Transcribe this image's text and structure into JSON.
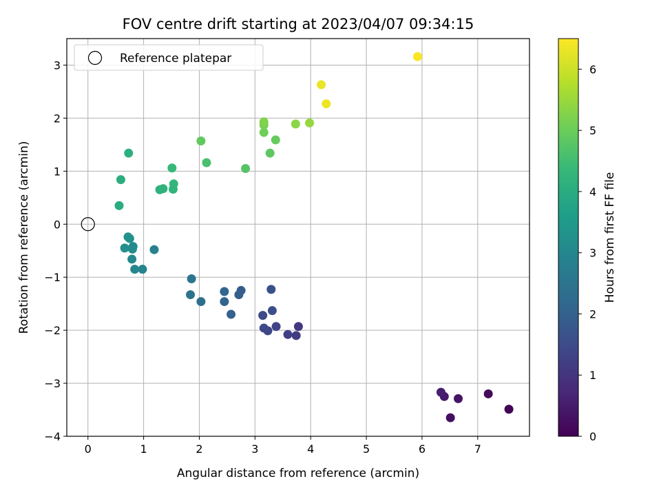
{
  "chart_data": {
    "type": "scatter",
    "title": "FOV centre drift starting at 2023/04/07 09:34:15",
    "xlabel": "Angular distance from reference (arcmin)",
    "ylabel": "Rotation from reference (arcmin)",
    "xlim": [
      -0.38,
      7.93
    ],
    "ylim": [
      -4.0,
      3.5
    ],
    "xticks": [
      0,
      1,
      2,
      3,
      4,
      5,
      6,
      7
    ],
    "yticks": [
      -4,
      -3,
      -2,
      -1,
      0,
      1,
      2,
      3
    ],
    "grid": true,
    "legend": {
      "placement": "top-left",
      "entries": [
        "Reference platepar"
      ]
    },
    "reference": {
      "x": 0,
      "y": 0,
      "label": "Reference platepar"
    },
    "colorbar": {
      "label": "Hours from first FF file",
      "min": 0,
      "max": 6.5,
      "ticks": [
        0,
        1,
        2,
        3,
        4,
        5,
        6
      ],
      "colormap": "viridis",
      "colormap_stops": [
        "#440154",
        "#482878",
        "#3e4989",
        "#31688e",
        "#26828e",
        "#1f9e89",
        "#35b779",
        "#6ece58",
        "#b5de2b",
        "#fde725"
      ]
    },
    "points": [
      {
        "x": 7.56,
        "y": -3.49,
        "c": 0.05
      },
      {
        "x": 7.19,
        "y": -3.2,
        "c": 0.15
      },
      {
        "x": 6.51,
        "y": -3.65,
        "c": 0.25
      },
      {
        "x": 6.65,
        "y": -3.29,
        "c": 0.35
      },
      {
        "x": 6.4,
        "y": -3.25,
        "c": 0.45
      },
      {
        "x": 6.34,
        "y": -3.17,
        "c": 0.55
      },
      {
        "x": 3.78,
        "y": -1.93,
        "c": 1.1
      },
      {
        "x": 3.74,
        "y": -2.1,
        "c": 1.18
      },
      {
        "x": 3.59,
        "y": -2.08,
        "c": 1.25
      },
      {
        "x": 3.38,
        "y": -1.93,
        "c": 1.32
      },
      {
        "x": 3.23,
        "y": -2.01,
        "c": 1.38
      },
      {
        "x": 3.16,
        "y": -1.96,
        "c": 1.44
      },
      {
        "x": 3.14,
        "y": -1.72,
        "c": 1.5
      },
      {
        "x": 3.31,
        "y": -1.63,
        "c": 1.55
      },
      {
        "x": 3.29,
        "y": -1.23,
        "c": 1.6
      },
      {
        "x": 2.75,
        "y": -1.25,
        "c": 1.9
      },
      {
        "x": 2.71,
        "y": -1.33,
        "c": 1.95
      },
      {
        "x": 2.57,
        "y": -1.7,
        "c": 2.0
      },
      {
        "x": 2.45,
        "y": -1.46,
        "c": 2.1
      },
      {
        "x": 2.45,
        "y": -1.27,
        "c": 2.15
      },
      {
        "x": 2.03,
        "y": -1.46,
        "c": 2.4
      },
      {
        "x": 1.84,
        "y": -1.33,
        "c": 2.5
      },
      {
        "x": 1.86,
        "y": -1.03,
        "c": 2.55
      },
      {
        "x": 1.19,
        "y": -0.48,
        "c": 2.85
      },
      {
        "x": 0.98,
        "y": -0.85,
        "c": 2.95
      },
      {
        "x": 0.84,
        "y": -0.85,
        "c": 3.0
      },
      {
        "x": 0.79,
        "y": -0.66,
        "c": 3.05
      },
      {
        "x": 0.81,
        "y": -0.42,
        "c": 3.1
      },
      {
        "x": 0.8,
        "y": -0.47,
        "c": 3.15
      },
      {
        "x": 0.66,
        "y": -0.45,
        "c": 3.2
      },
      {
        "x": 0.75,
        "y": -0.27,
        "c": 3.25
      },
      {
        "x": 0.72,
        "y": -0.24,
        "c": 3.3
      },
      {
        "x": 0.56,
        "y": 0.35,
        "c": 4.0
      },
      {
        "x": 0.59,
        "y": 0.84,
        "c": 4.05
      },
      {
        "x": 0.73,
        "y": 1.34,
        "c": 4.1
      },
      {
        "x": 1.29,
        "y": 0.65,
        "c": 4.15
      },
      {
        "x": 1.35,
        "y": 0.67,
        "c": 4.2
      },
      {
        "x": 1.53,
        "y": 0.66,
        "c": 4.25
      },
      {
        "x": 1.54,
        "y": 0.76,
        "c": 4.3
      },
      {
        "x": 1.51,
        "y": 1.06,
        "c": 4.35
      },
      {
        "x": 2.13,
        "y": 1.16,
        "c": 4.6
      },
      {
        "x": 2.83,
        "y": 1.05,
        "c": 4.75
      },
      {
        "x": 2.03,
        "y": 1.57,
        "c": 4.9
      },
      {
        "x": 3.27,
        "y": 1.34,
        "c": 4.85
      },
      {
        "x": 3.37,
        "y": 1.59,
        "c": 4.95
      },
      {
        "x": 3.16,
        "y": 1.73,
        "c": 5.05
      },
      {
        "x": 3.16,
        "y": 1.87,
        "c": 5.15
      },
      {
        "x": 3.16,
        "y": 1.93,
        "c": 5.25
      },
      {
        "x": 3.73,
        "y": 1.89,
        "c": 5.35
      },
      {
        "x": 3.98,
        "y": 1.91,
        "c": 5.45
      },
      {
        "x": 4.19,
        "y": 2.63,
        "c": 6.3
      },
      {
        "x": 4.28,
        "y": 2.27,
        "c": 6.35
      },
      {
        "x": 5.92,
        "y": 3.16,
        "c": 6.45
      }
    ]
  }
}
